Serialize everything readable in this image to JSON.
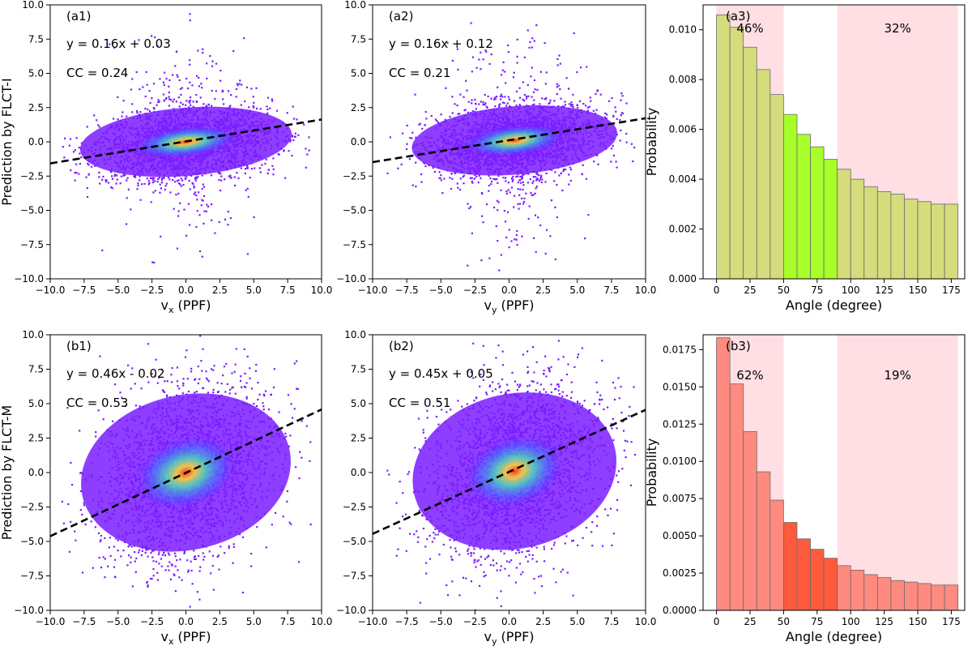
{
  "colors": {
    "scatter_outer": "#7a1cff",
    "scatter_mid": "#3f7dff",
    "scatter_inner": "#2ee8c8",
    "scatter_core_yellow": "#e8e84a",
    "scatter_core_red": "#ff4a1a",
    "fit_line": "#000000",
    "shade": "#ffdfe3",
    "a3_bar": "#d4dc7c",
    "a3_bar_highlight": "#a8ff2a",
    "b3_bar": "#ff8a80",
    "b3_bar_highlight": "#ff5a3c"
  },
  "chart_data": [
    {
      "id": "a1",
      "type": "scatter",
      "panel_label": "(a1)",
      "equation": "y = 0.16x + 0.03",
      "cc": "CC = 0.24",
      "xlabel": "v",
      "xlabel_sub": "x",
      "xlabel_unit": " (PPF)",
      "ylabel": "Prediction by FLCT-I",
      "xlim": [
        -10,
        10
      ],
      "ylim": [
        -10,
        10
      ],
      "xticks": [
        -10,
        -7.5,
        -5,
        -2.5,
        0,
        2.5,
        5,
        7.5,
        10
      ],
      "xtick_labels": [
        "−10.0",
        "−7.5",
        "−5.0",
        "−2.5",
        "0.0",
        "2.5",
        "5.0",
        "7.5",
        "10.0"
      ],
      "yticks": [
        -10,
        -7.5,
        -5,
        -2.5,
        0,
        2.5,
        5,
        7.5,
        10
      ],
      "ytick_labels": [
        "−10.0",
        "−7.5",
        "−5.0",
        "−2.5",
        "0.0",
        "2.5",
        "5.0",
        "7.5",
        "10.0"
      ],
      "fit": {
        "slope": 0.16,
        "intercept": 0.03
      },
      "cloud": {
        "cx": 0,
        "cy": 0,
        "wx": 8.5,
        "wy": 3.2,
        "spike_y": 10,
        "tilt": 0.16
      }
    },
    {
      "id": "a2",
      "type": "scatter",
      "panel_label": "(a2)",
      "equation": "y = 0.16x + 0.12",
      "cc": "CC = 0.21",
      "xlabel": "v",
      "xlabel_sub": "y",
      "xlabel_unit": " (PPF)",
      "ylabel": "",
      "xlim": [
        -10,
        10
      ],
      "ylim": [
        -10,
        10
      ],
      "xticks": [
        -10,
        -7.5,
        -5,
        -2.5,
        0,
        2.5,
        5,
        7.5,
        10
      ],
      "xtick_labels": [
        "−10.0",
        "−7.5",
        "−5.0",
        "−2.5",
        "0.0",
        "2.5",
        "5.0",
        "7.5",
        "10.0"
      ],
      "yticks": [
        -10,
        -7.5,
        -5,
        -2.5,
        0,
        2.5,
        5,
        7.5,
        10
      ],
      "ytick_labels": [
        "−10.0",
        "−7.5",
        "−5.0",
        "−2.5",
        "0.0",
        "2.5",
        "5.0",
        "7.5",
        "10.0"
      ],
      "fit": {
        "slope": 0.16,
        "intercept": 0.12
      },
      "cloud": {
        "cx": 0.4,
        "cy": 0.1,
        "wx": 8.2,
        "wy": 3.2,
        "spike_y": 10,
        "tilt": 0.16
      }
    },
    {
      "id": "a3",
      "type": "bar",
      "panel_label": "(a3)",
      "xlabel": "Angle (degree)",
      "ylabel": "Probability",
      "xlim": [
        -10,
        185
      ],
      "ylim": [
        0,
        0.011
      ],
      "xticks": [
        0,
        25,
        50,
        75,
        100,
        125,
        150,
        175
      ],
      "xtick_labels": [
        "0",
        "25",
        "50",
        "75",
        "100",
        "125",
        "150",
        "175"
      ],
      "yticks": [
        0,
        0.002,
        0.004,
        0.006,
        0.008,
        0.01
      ],
      "ytick_labels": [
        "0.000",
        "0.002",
        "0.004",
        "0.006",
        "0.008",
        "0.010"
      ],
      "bin_edges": [
        0,
        10,
        20,
        30,
        40,
        50,
        60,
        70,
        80,
        90,
        100,
        110,
        120,
        130,
        140,
        150,
        160,
        170,
        180
      ],
      "values": [
        0.0106,
        0.0101,
        0.0093,
        0.0084,
        0.0074,
        0.0066,
        0.0058,
        0.0053,
        0.0048,
        0.0044,
        0.004,
        0.0037,
        0.0035,
        0.0034,
        0.0032,
        0.0031,
        0.003,
        0.003
      ],
      "highlight_range": [
        50,
        90
      ],
      "shaded_regions": [
        [
          0,
          50
        ],
        [
          90,
          180
        ]
      ],
      "annotations": [
        {
          "text": "46%",
          "x": 25,
          "y": 0.0099
        },
        {
          "text": "32%",
          "x": 135,
          "y": 0.0099
        }
      ],
      "bar_color_key": "a3_bar",
      "highlight_color_key": "a3_bar_highlight"
    },
    {
      "id": "b1",
      "type": "scatter",
      "panel_label": "(b1)",
      "equation": "y = 0.46x - 0.02",
      "cc": "CC = 0.53",
      "xlabel": "v",
      "xlabel_sub": "x",
      "xlabel_unit": " (PPF)",
      "ylabel": "Prediction by FLCT-M",
      "xlim": [
        -10,
        10
      ],
      "ylim": [
        -10,
        10
      ],
      "xticks": [
        -10,
        -7.5,
        -5,
        -2.5,
        0,
        2.5,
        5,
        7.5,
        10
      ],
      "xtick_labels": [
        "−10.0",
        "−7.5",
        "−5.0",
        "−2.5",
        "0.0",
        "2.5",
        "5.0",
        "7.5",
        "10.0"
      ],
      "yticks": [
        -10,
        -7.5,
        -5,
        -2.5,
        0,
        2.5,
        5,
        7.5,
        10
      ],
      "ytick_labels": [
        "−10.0",
        "−7.5",
        "−5.0",
        "−2.5",
        "0.0",
        "2.5",
        "5.0",
        "7.5",
        "10.0"
      ],
      "fit": {
        "slope": 0.46,
        "intercept": -0.02
      },
      "cloud": {
        "cx": 0,
        "cy": 0,
        "wx": 8.5,
        "wy": 7.2,
        "spike_y": 9.5,
        "tilt": 0.46
      }
    },
    {
      "id": "b2",
      "type": "scatter",
      "panel_label": "(b2)",
      "equation": "y = 0.45x + 0.05",
      "cc": "CC = 0.51",
      "xlabel": "v",
      "xlabel_sub": "y",
      "xlabel_unit": " (PPF)",
      "ylabel": "",
      "xlim": [
        -10,
        10
      ],
      "ylim": [
        -10,
        10
      ],
      "xticks": [
        -10,
        -7.5,
        -5,
        -2.5,
        0,
        2.5,
        5,
        7.5,
        10
      ],
      "xtick_labels": [
        "−10.0",
        "−7.5",
        "−5.0",
        "−2.5",
        "0.0",
        "2.5",
        "5.0",
        "7.5",
        "10.0"
      ],
      "yticks": [
        -10,
        -7.5,
        -5,
        -2.5,
        0,
        2.5,
        5,
        7.5,
        10
      ],
      "ytick_labels": [
        "−10.0",
        "−7.5",
        "−5.0",
        "−2.5",
        "0.0",
        "2.5",
        "5.0",
        "7.5",
        "10.0"
      ],
      "fit": {
        "slope": 0.45,
        "intercept": 0.05
      },
      "cloud": {
        "cx": 0.4,
        "cy": 0.1,
        "wx": 8.2,
        "wy": 7.2,
        "spike_y": 9.5,
        "tilt": 0.45
      }
    },
    {
      "id": "b3",
      "type": "bar",
      "panel_label": "(b3)",
      "xlabel": "Angle (degree)",
      "ylabel": "Probability",
      "xlim": [
        -10,
        185
      ],
      "ylim": [
        0,
        0.0185
      ],
      "xticks": [
        0,
        25,
        50,
        75,
        100,
        125,
        150,
        175
      ],
      "xtick_labels": [
        "0",
        "25",
        "50",
        "75",
        "100",
        "125",
        "150",
        "175"
      ],
      "yticks": [
        0,
        0.0025,
        0.005,
        0.0075,
        0.01,
        0.0125,
        0.015,
        0.0175
      ],
      "ytick_labels": [
        "0.0000",
        "0.0025",
        "0.0050",
        "0.0075",
        "0.0100",
        "0.0125",
        "0.0150",
        "0.0175"
      ],
      "bin_edges": [
        0,
        10,
        20,
        30,
        40,
        50,
        60,
        70,
        80,
        90,
        100,
        110,
        120,
        130,
        140,
        150,
        160,
        170,
        180
      ],
      "values": [
        0.0183,
        0.0152,
        0.012,
        0.0093,
        0.0074,
        0.0059,
        0.0048,
        0.0041,
        0.0035,
        0.003,
        0.0027,
        0.0024,
        0.0022,
        0.002,
        0.0019,
        0.0018,
        0.0017,
        0.0017
      ],
      "highlight_range": [
        50,
        90
      ],
      "shaded_regions": [
        [
          0,
          50
        ],
        [
          90,
          180
        ]
      ],
      "annotations": [
        {
          "text": "62%",
          "x": 25,
          "y": 0.0155
        },
        {
          "text": "19%",
          "x": 135,
          "y": 0.0155
        }
      ],
      "bar_color_key": "b3_bar",
      "highlight_color_key": "b3_bar_highlight"
    }
  ]
}
